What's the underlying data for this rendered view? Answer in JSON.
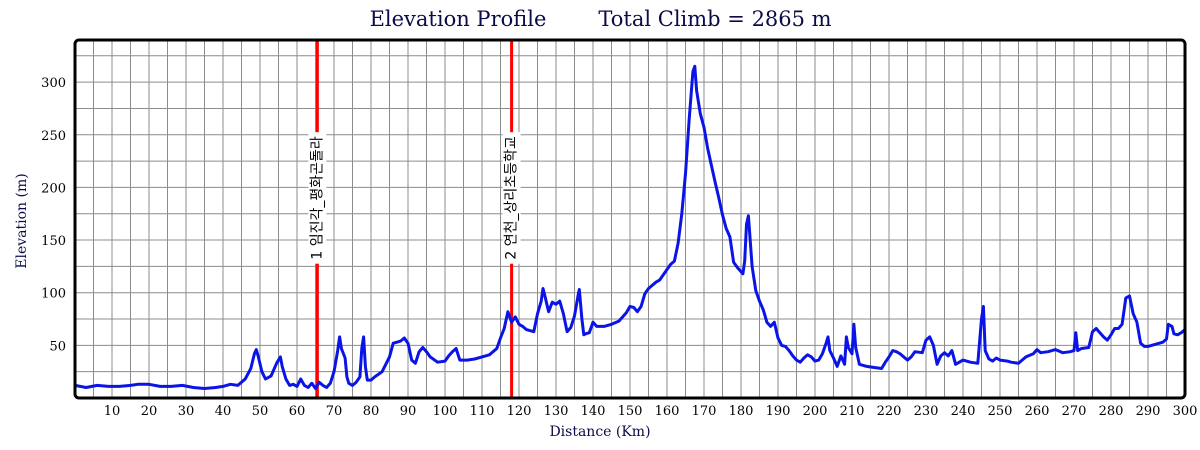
{
  "chart_data": {
    "type": "line",
    "title": "Elevation Profile",
    "subtitle": "Total Climb = 2865 m",
    "xlabel": "Distance (Km)",
    "ylabel": "Elevation (m)",
    "xlim": [
      0,
      300
    ],
    "ylim": [
      0,
      340
    ],
    "xticks": [
      10,
      20,
      30,
      40,
      50,
      60,
      70,
      80,
      90,
      100,
      110,
      120,
      130,
      140,
      150,
      160,
      170,
      180,
      190,
      200,
      210,
      220,
      230,
      240,
      250,
      260,
      270,
      280,
      290,
      300
    ],
    "xtick_labels": [
      "10",
      "20",
      "30",
      "40",
      "50",
      "60",
      "70",
      "80",
      "90",
      "100",
      "110",
      "120",
      "130",
      "140",
      "150",
      "160",
      "170",
      "180",
      "190",
      "200",
      "210",
      "220",
      "230",
      "240",
      "250",
      "260",
      "270",
      "280",
      "290",
      "300"
    ],
    "yticks": [
      50,
      100,
      150,
      200,
      250,
      300
    ],
    "ytick_labels": [
      "50",
      "100",
      "150",
      "200",
      "250",
      "300"
    ],
    "grid": true,
    "line_color": "#0a14e6",
    "marker_color": "#ff0000",
    "markers": [
      {
        "x": 65.5,
        "label": "1 임진각_평화곤돌라"
      },
      {
        "x": 118,
        "label": "2 연천_상리초등학교"
      }
    ],
    "series": [
      {
        "values": [
          [
            0,
            12
          ],
          [
            3,
            10
          ],
          [
            6,
            12
          ],
          [
            9,
            11
          ],
          [
            12,
            11
          ],
          [
            15,
            12
          ],
          [
            17,
            13
          ],
          [
            20,
            13
          ],
          [
            23,
            11
          ],
          [
            26,
            11
          ],
          [
            29,
            12
          ],
          [
            32,
            10
          ],
          [
            35,
            9
          ],
          [
            38,
            10
          ],
          [
            40,
            11
          ],
          [
            42,
            13
          ],
          [
            44,
            12
          ],
          [
            46,
            18
          ],
          [
            47.5,
            28
          ],
          [
            48.5,
            42
          ],
          [
            49,
            46
          ],
          [
            49.5,
            40
          ],
          [
            50.5,
            25
          ],
          [
            51.5,
            18
          ],
          [
            53,
            21
          ],
          [
            54.5,
            33
          ],
          [
            55.5,
            39
          ],
          [
            56,
            30
          ],
          [
            57,
            18
          ],
          [
            58,
            12
          ],
          [
            59,
            13
          ],
          [
            60,
            11
          ],
          [
            61,
            18
          ],
          [
            62,
            12
          ],
          [
            63,
            10
          ],
          [
            64,
            14
          ],
          [
            65,
            9
          ],
          [
            66,
            15
          ],
          [
            67,
            12
          ],
          [
            68,
            10
          ],
          [
            69,
            14
          ],
          [
            70,
            25
          ],
          [
            71,
            45
          ],
          [
            71.5,
            58
          ],
          [
            72,
            47
          ],
          [
            73,
            38
          ],
          [
            73.5,
            20
          ],
          [
            74,
            14
          ],
          [
            75,
            12
          ],
          [
            76,
            15
          ],
          [
            77,
            20
          ],
          [
            77.5,
            47
          ],
          [
            78,
            58
          ],
          [
            78.5,
            30
          ],
          [
            79,
            17
          ],
          [
            80,
            17
          ],
          [
            81,
            20
          ],
          [
            83,
            25
          ],
          [
            85,
            39
          ],
          [
            86,
            52
          ],
          [
            87,
            53
          ],
          [
            88,
            54
          ],
          [
            89,
            57
          ],
          [
            90,
            52
          ],
          [
            91,
            36
          ],
          [
            92,
            33
          ],
          [
            93,
            44
          ],
          [
            94,
            48
          ],
          [
            95,
            44
          ],
          [
            96,
            39
          ],
          [
            98,
            34
          ],
          [
            100,
            35
          ],
          [
            101,
            40
          ],
          [
            102,
            44
          ],
          [
            103,
            47
          ],
          [
            104,
            36
          ],
          [
            106,
            36
          ],
          [
            108,
            37
          ],
          [
            110,
            39
          ],
          [
            112,
            41
          ],
          [
            114,
            47
          ],
          [
            115,
            57
          ],
          [
            116,
            66
          ],
          [
            117,
            82
          ],
          [
            118,
            72
          ],
          [
            119,
            77
          ],
          [
            120,
            70
          ],
          [
            121,
            68
          ],
          [
            122,
            65
          ],
          [
            124,
            63
          ],
          [
            125,
            80
          ],
          [
            126,
            92
          ],
          [
            126.5,
            104
          ],
          [
            127,
            97
          ],
          [
            128,
            82
          ],
          [
            129,
            91
          ],
          [
            130,
            89
          ],
          [
            131,
            92
          ],
          [
            132,
            80
          ],
          [
            133,
            63
          ],
          [
            134,
            67
          ],
          [
            135,
            78
          ],
          [
            136,
            98
          ],
          [
            136.3,
            103
          ],
          [
            137,
            75
          ],
          [
            137.5,
            60
          ],
          [
            138,
            61
          ],
          [
            139,
            62
          ],
          [
            140,
            72
          ],
          [
            141,
            68
          ],
          [
            143,
            68
          ],
          [
            145,
            70
          ],
          [
            147,
            73
          ],
          [
            149,
            81
          ],
          [
            150,
            87
          ],
          [
            151,
            86
          ],
          [
            152,
            82
          ],
          [
            153,
            87
          ],
          [
            154,
            99
          ],
          [
            155,
            104
          ],
          [
            157,
            110
          ],
          [
            158,
            112
          ],
          [
            160,
            122
          ],
          [
            161,
            127
          ],
          [
            162,
            130
          ],
          [
            163,
            147
          ],
          [
            164,
            175
          ],
          [
            165,
            213
          ],
          [
            166,
            265
          ],
          [
            167,
            310
          ],
          [
            167.5,
            315
          ],
          [
            168,
            292
          ],
          [
            169,
            270
          ],
          [
            170,
            257
          ],
          [
            171,
            237
          ],
          [
            172,
            221
          ],
          [
            173,
            205
          ],
          [
            174,
            190
          ],
          [
            175,
            174
          ],
          [
            176,
            161
          ],
          [
            177,
            153
          ],
          [
            178,
            129
          ],
          [
            179,
            124
          ],
          [
            180,
            120
          ],
          [
            180.5,
            118
          ],
          [
            181,
            130
          ],
          [
            181.5,
            165
          ],
          [
            182,
            173
          ],
          [
            182.5,
            150
          ],
          [
            183,
            125
          ],
          [
            184,
            102
          ],
          [
            185,
            92
          ],
          [
            186,
            84
          ],
          [
            187,
            72
          ],
          [
            188,
            68
          ],
          [
            189,
            72
          ],
          [
            190,
            57
          ],
          [
            191,
            50
          ],
          [
            192,
            49
          ],
          [
            193,
            45
          ],
          [
            194,
            40
          ],
          [
            195,
            36
          ],
          [
            196,
            34
          ],
          [
            197,
            38
          ],
          [
            198,
            41
          ],
          [
            199,
            39
          ],
          [
            200,
            35
          ],
          [
            201,
            36
          ],
          [
            202,
            42
          ],
          [
            203,
            52
          ],
          [
            203.5,
            58
          ],
          [
            204,
            45
          ],
          [
            205,
            38
          ],
          [
            206,
            30
          ],
          [
            207,
            40
          ],
          [
            208,
            32
          ],
          [
            208.5,
            58
          ],
          [
            209,
            48
          ],
          [
            210,
            42
          ],
          [
            210.5,
            70
          ],
          [
            211,
            48
          ],
          [
            212,
            32
          ],
          [
            214,
            30
          ],
          [
            216,
            29
          ],
          [
            218,
            28
          ],
          [
            219,
            34
          ],
          [
            220,
            39
          ],
          [
            221,
            45
          ],
          [
            222,
            44
          ],
          [
            223,
            42
          ],
          [
            225,
            36
          ],
          [
            226,
            39
          ],
          [
            227,
            44
          ],
          [
            229,
            43
          ],
          [
            230,
            55
          ],
          [
            231,
            58
          ],
          [
            232,
            50
          ],
          [
            233,
            32
          ],
          [
            234,
            40
          ],
          [
            235,
            43
          ],
          [
            236,
            40
          ],
          [
            237,
            45
          ],
          [
            238,
            32
          ],
          [
            240,
            36
          ],
          [
            242,
            34
          ],
          [
            244,
            33
          ],
          [
            245,
            75
          ],
          [
            245.5,
            87
          ],
          [
            246,
            45
          ],
          [
            247,
            37
          ],
          [
            248,
            35
          ],
          [
            249,
            38
          ],
          [
            250,
            36
          ],
          [
            252,
            35
          ],
          [
            253,
            34
          ],
          [
            255,
            33
          ],
          [
            257,
            39
          ],
          [
            259,
            42
          ],
          [
            260,
            46
          ],
          [
            261,
            43
          ],
          [
            263,
            44
          ],
          [
            265,
            46
          ],
          [
            267,
            43
          ],
          [
            269,
            44
          ],
          [
            270,
            45
          ],
          [
            270.5,
            62
          ],
          [
            271,
            45
          ],
          [
            272,
            47
          ],
          [
            274,
            48
          ],
          [
            275,
            63
          ],
          [
            276,
            66
          ],
          [
            277,
            62
          ],
          [
            278,
            58
          ],
          [
            279,
            55
          ],
          [
            280,
            60
          ],
          [
            281,
            66
          ],
          [
            282,
            66
          ],
          [
            283,
            70
          ],
          [
            284,
            95
          ],
          [
            285,
            97
          ],
          [
            286,
            80
          ],
          [
            287,
            72
          ],
          [
            288,
            52
          ],
          [
            289,
            49
          ],
          [
            290,
            49
          ],
          [
            292,
            51
          ],
          [
            294,
            53
          ],
          [
            295,
            56
          ],
          [
            295.5,
            70
          ],
          [
            296.5,
            68
          ],
          [
            297,
            61
          ],
          [
            298,
            60
          ],
          [
            299,
            62
          ],
          [
            300,
            65
          ]
        ]
      }
    ]
  }
}
